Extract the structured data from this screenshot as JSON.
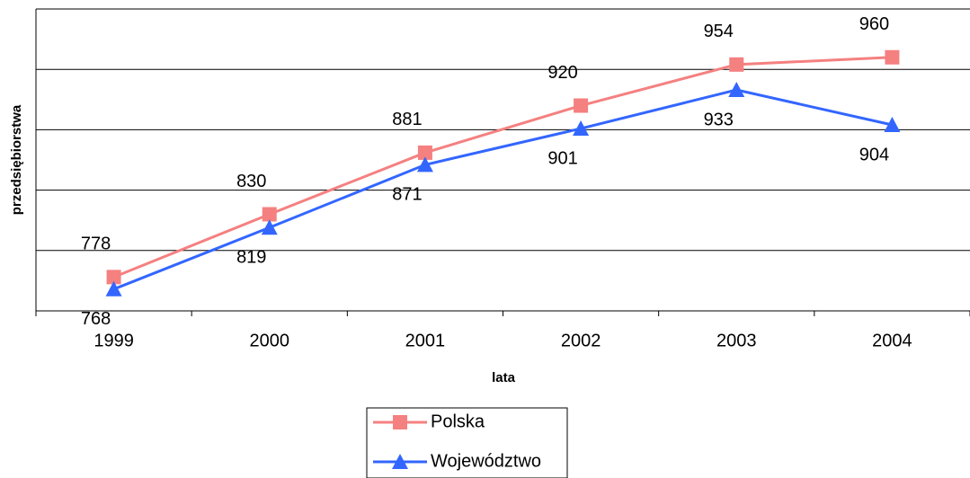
{
  "chart_data": {
    "type": "line",
    "x_label": "lata",
    "y_label": "przedsiębiorstwa",
    "categories": [
      "1999",
      "2000",
      "2001",
      "2002",
      "2003",
      "2004"
    ],
    "series": [
      {
        "name": "Polska",
        "color": "#f58080",
        "marker": "square",
        "values": [
          778,
          830,
          881,
          920,
          954,
          960
        ]
      },
      {
        "name": "Województwo",
        "color": "#3366ff",
        "marker": "triangle",
        "values": [
          768,
          819,
          871,
          901,
          933,
          904
        ]
      }
    ],
    "ylim": [
      750,
      1000
    ],
    "yticks": [
      750,
      800,
      850,
      900,
      950,
      1000
    ],
    "grid": true,
    "legend": "bottom"
  }
}
